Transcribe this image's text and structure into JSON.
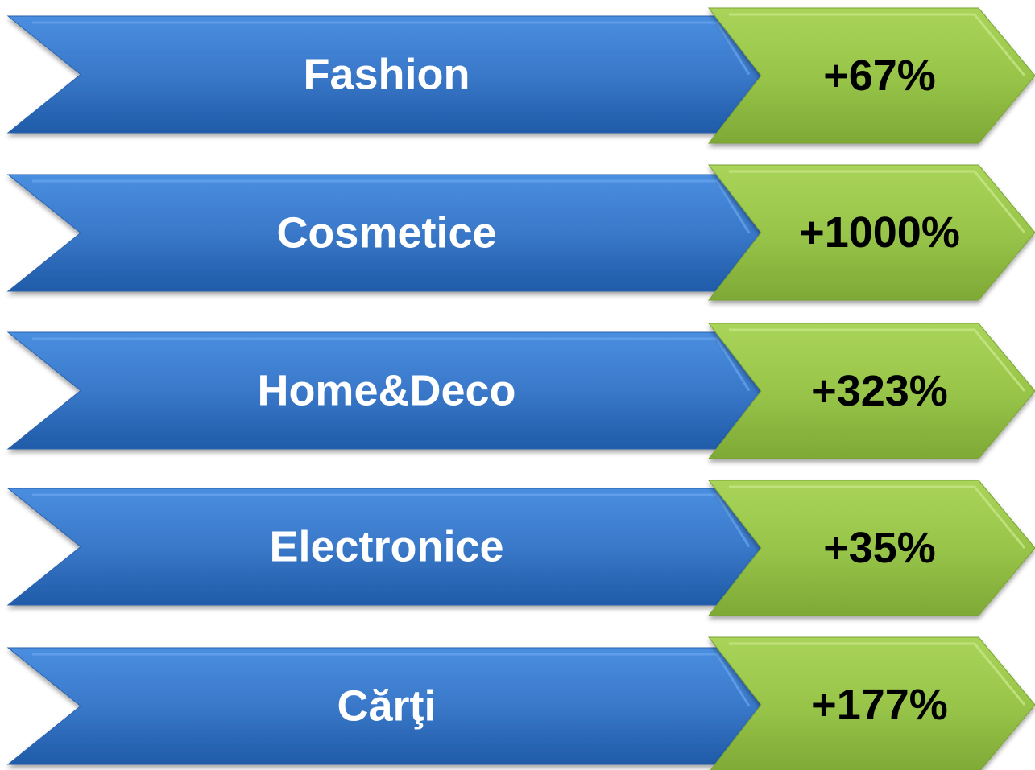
{
  "items": [
    {
      "label": "Fashion",
      "change": "+67%"
    },
    {
      "label": "Cosmetice",
      "change": "+1000%"
    },
    {
      "label": "Home&Deco",
      "change": "+323%"
    },
    {
      "label": "Electronice",
      "change": "+35%"
    },
    {
      "label": "Cărţi",
      "change": "+177%"
    }
  ]
}
